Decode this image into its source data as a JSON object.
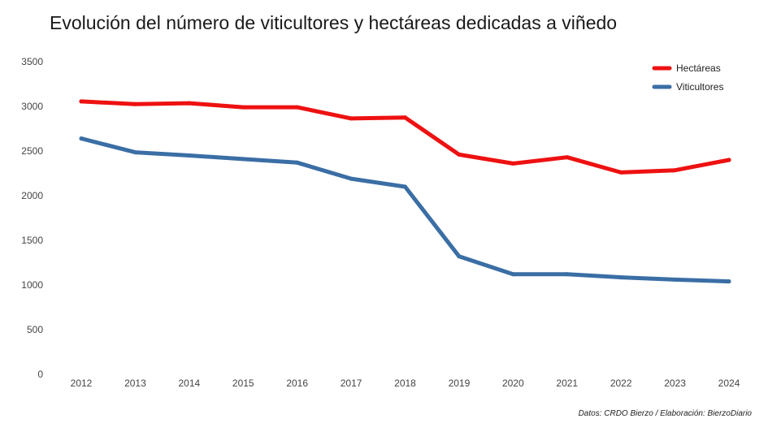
{
  "title": "Evolución del número de viticultores y hectáreas dedicadas a viñedo",
  "source": "Datos: CRDO Bierzo / Elaboración: BierzoDiario",
  "colors": {
    "hectareas": "#ee1111",
    "viticultores": "#3a6ea5"
  },
  "chart_data": {
    "type": "line",
    "title": "Evolución del número de viticultores y hectáreas dedicadas a viñedo",
    "xlabel": "",
    "ylabel": "",
    "x": [
      "2012",
      "2013",
      "2014",
      "2015",
      "2016",
      "2017",
      "2018",
      "2019",
      "2020",
      "2021",
      "2022",
      "2023",
      "2024"
    ],
    "ylim": [
      0,
      3500
    ],
    "yticks": [
      "0",
      "500",
      "1000",
      "1500",
      "2000",
      "2500",
      "3000",
      "3500"
    ],
    "grid": false,
    "legend_position": "top-right",
    "series": [
      {
        "name": "Hectáreas",
        "color": "#ee1111",
        "values": [
          3055,
          3025,
          3035,
          2990,
          2990,
          2865,
          2875,
          2460,
          2360,
          2430,
          2260,
          2285,
          2400
        ]
      },
      {
        "name": "Viticultores",
        "color": "#3a6ea5",
        "values": [
          2640,
          2485,
          2450,
          2410,
          2370,
          2190,
          2100,
          1320,
          1120,
          1120,
          1085,
          1060,
          1040
        ]
      }
    ]
  }
}
